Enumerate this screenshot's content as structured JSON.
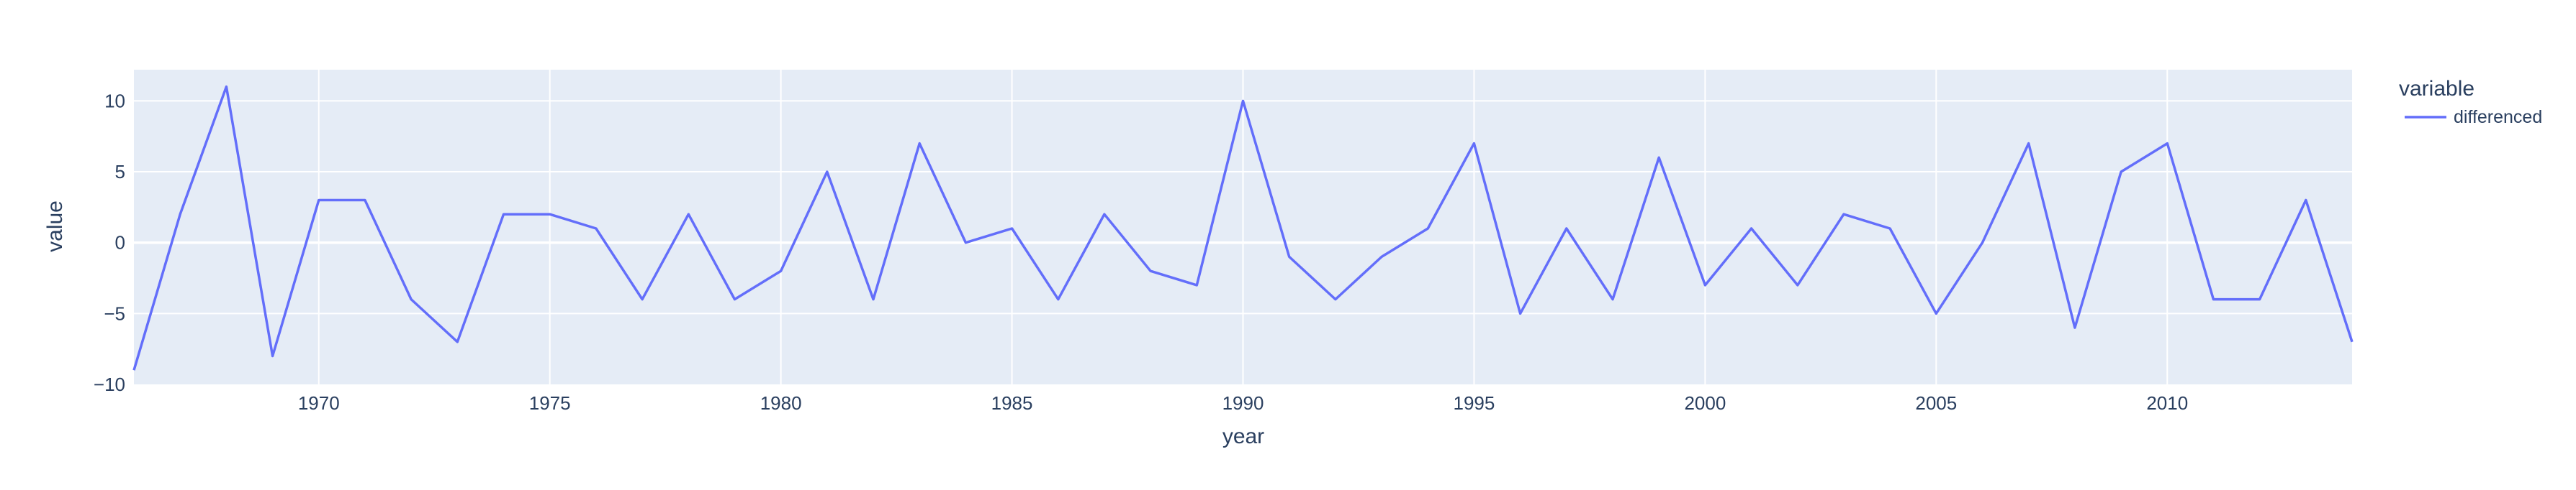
{
  "chart_data": {
    "type": "line",
    "title": "",
    "xlabel": "year",
    "ylabel": "value",
    "xlim": [
      1966,
      2014
    ],
    "ylim": [
      -10,
      12.2
    ],
    "x_ticks": [
      1970,
      1975,
      1980,
      1985,
      1990,
      1995,
      2000,
      2005,
      2010
    ],
    "y_ticks": [
      -10,
      -5,
      0,
      5,
      10
    ],
    "grid": true,
    "legend": {
      "title": "variable",
      "placement": "top-right"
    },
    "series": [
      {
        "name": "differenced",
        "color": "#636efa",
        "x": [
          1966,
          1967,
          1968,
          1969,
          1970,
          1971,
          1972,
          1973,
          1974,
          1975,
          1976,
          1977,
          1978,
          1979,
          1980,
          1981,
          1982,
          1983,
          1984,
          1985,
          1986,
          1987,
          1988,
          1989,
          1990,
          1991,
          1992,
          1993,
          1994,
          1995,
          1996,
          1997,
          1998,
          1999,
          2000,
          2001,
          2002,
          2003,
          2004,
          2005,
          2006,
          2007,
          2008,
          2009,
          2010,
          2011,
          2012,
          2013,
          2014
        ],
        "y": [
          -9,
          2,
          11,
          -8,
          3,
          3,
          -4,
          -7,
          2,
          2,
          1,
          -4,
          2,
          -4,
          -2,
          5,
          -4,
          7,
          0,
          1,
          -4,
          2,
          -2,
          -3,
          10,
          -1,
          -4,
          -1,
          1,
          7,
          -5,
          1,
          -4,
          6,
          -3,
          1,
          -3,
          2,
          1,
          -5,
          0,
          7,
          -6,
          5,
          7,
          -4,
          -4,
          3,
          -7
        ]
      }
    ]
  },
  "colors": {
    "plot_bg": "#e5ecf6",
    "grid": "#ffffff",
    "text": "#2a3f5f"
  }
}
